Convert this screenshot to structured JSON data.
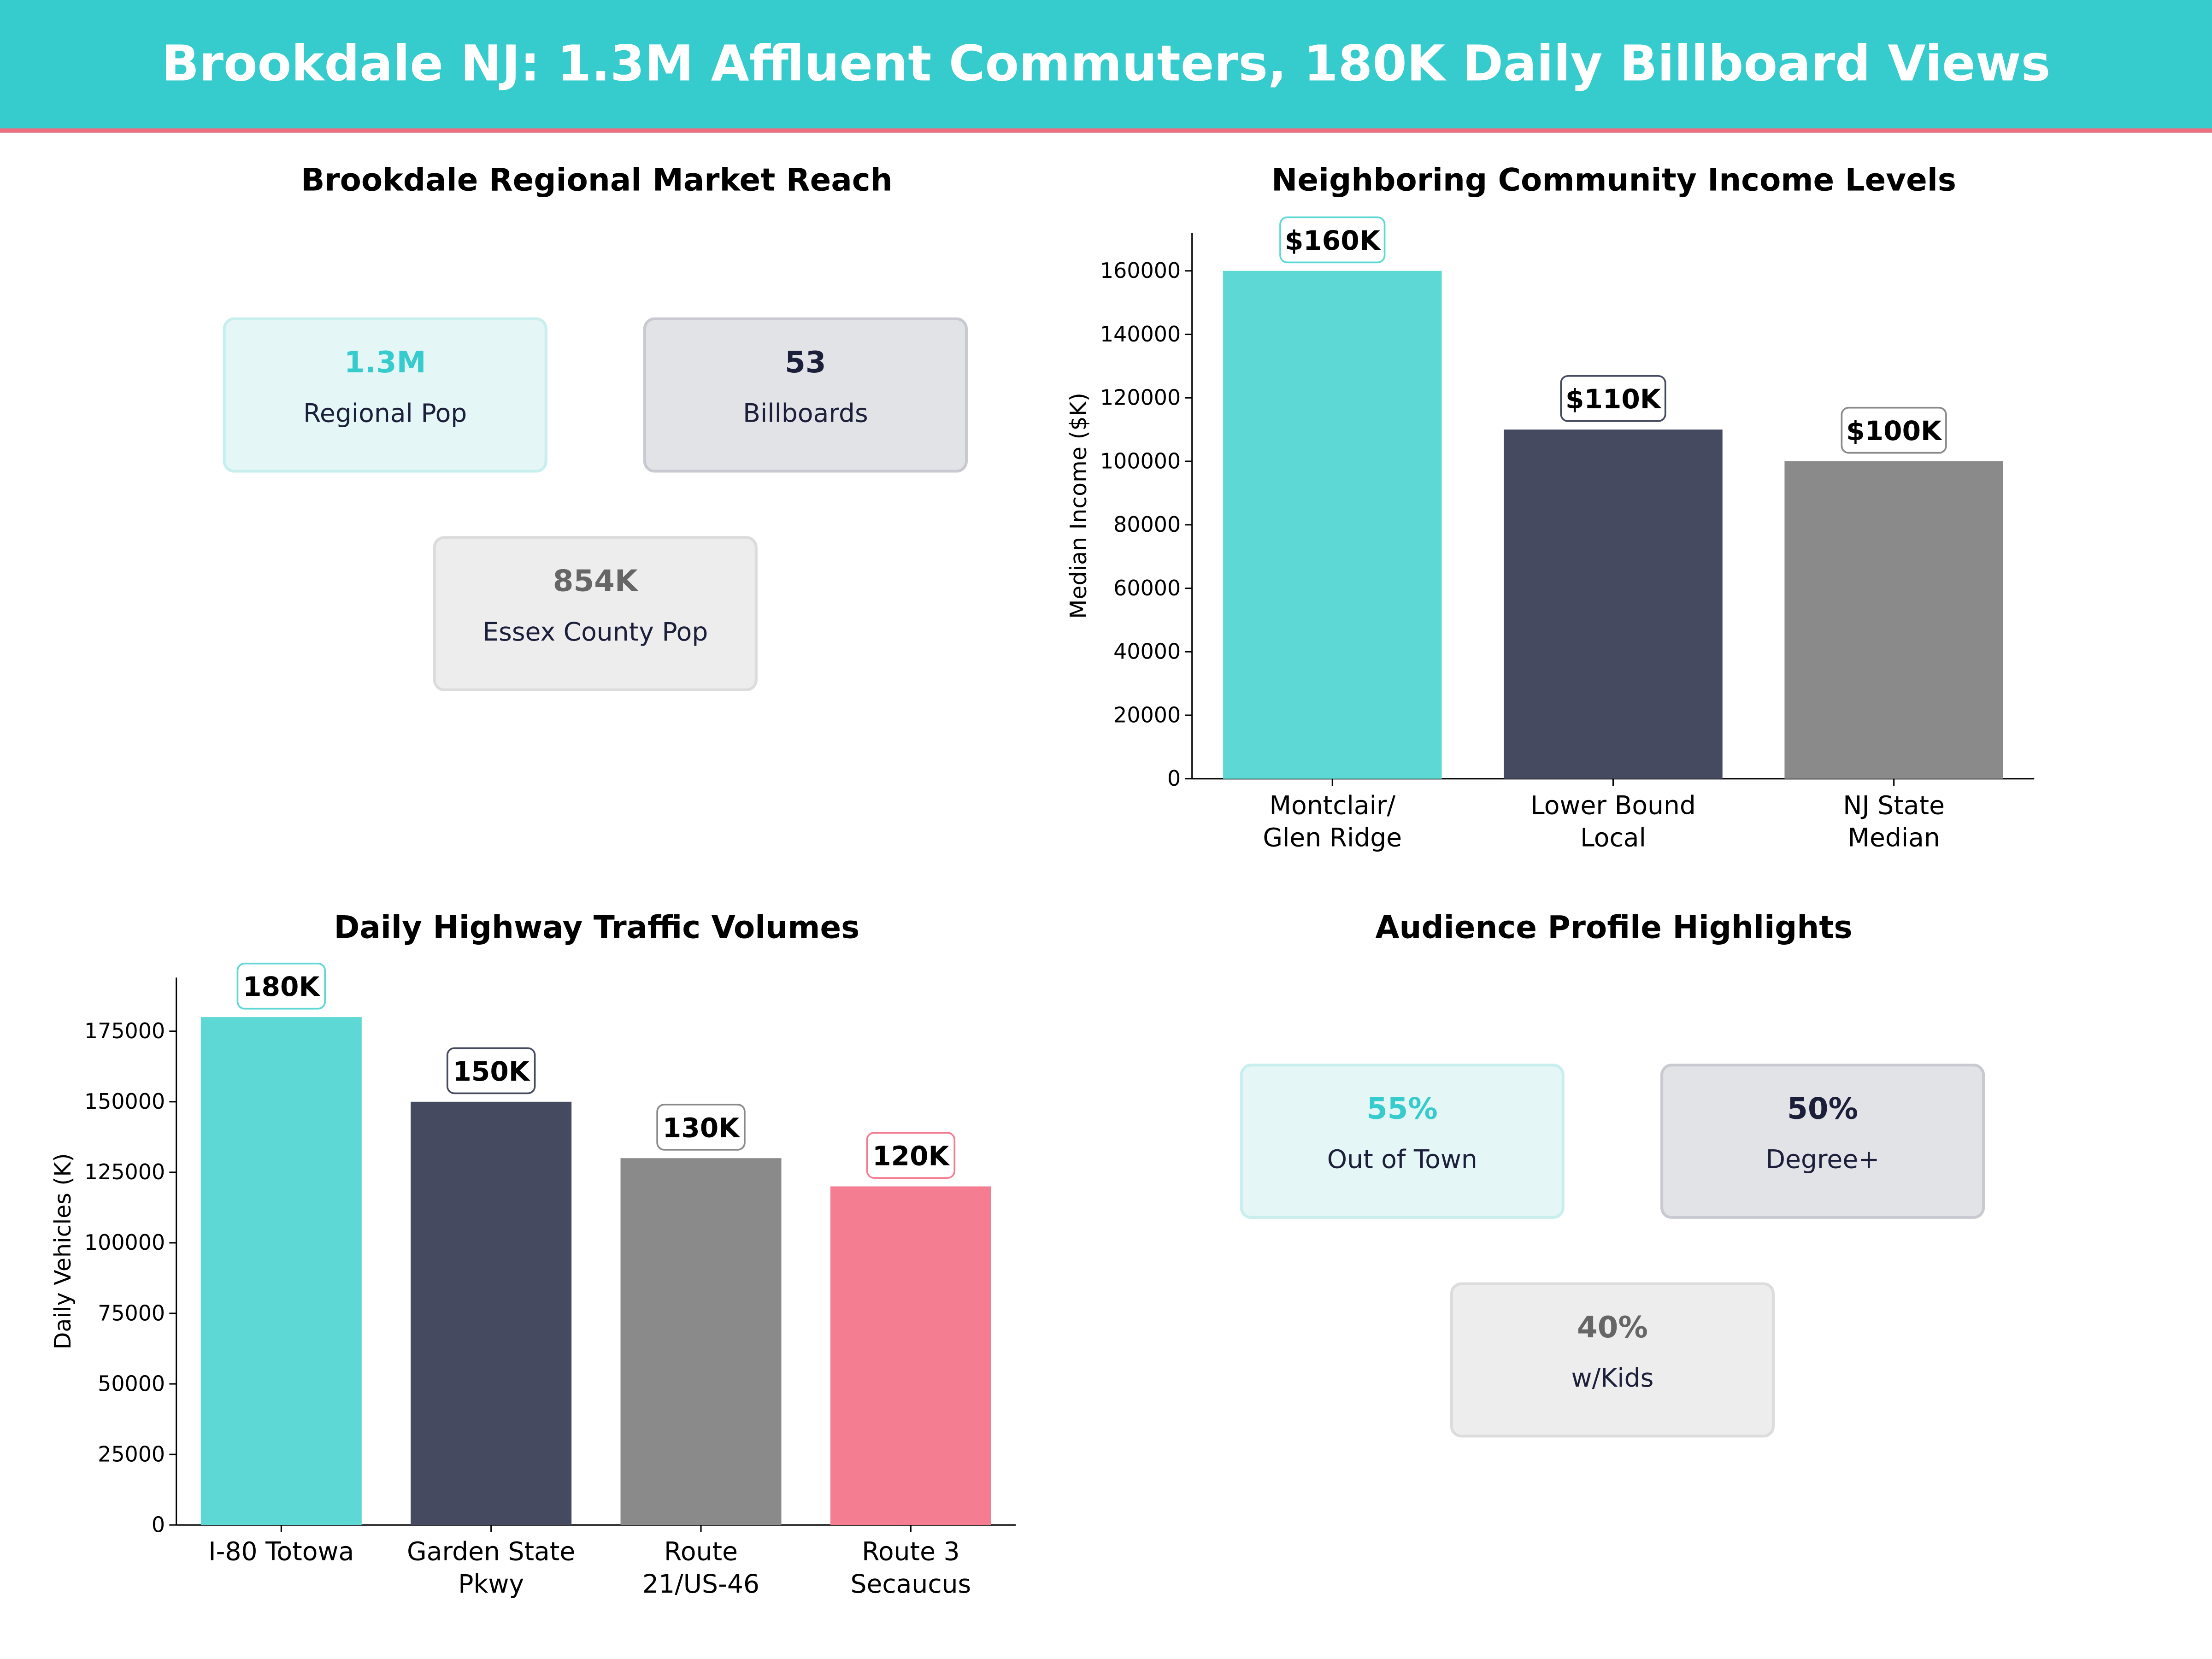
{
  "header": {
    "title": "Brookdale NJ: 1.3M Affluent Commuters, 180K Daily Billboard Views",
    "bg_color": "#36cbcc",
    "accent_line_color": "#ef6f81"
  },
  "market_reach": {
    "title": "Brookdale Regional Market Reach",
    "cards": [
      {
        "value": "1.3M",
        "label": "Regional Pop",
        "value_color": "#36cbcc",
        "bg": "#e4f6f6",
        "border": "#c9eeee"
      },
      {
        "value": "53",
        "label": "Billboards",
        "value_color": "#1c1f3a",
        "bg": "#e2e3e7",
        "border": "#c9cad1"
      },
      {
        "value": "854K",
        "label": "Essex County Pop",
        "value_color": "#666666",
        "bg": "#ededed",
        "border": "#dcdcdc"
      }
    ]
  },
  "audience": {
    "title": "Audience Profile Highlights",
    "cards": [
      {
        "value": "55%",
        "label": "Out of Town",
        "value_color": "#36cbcc",
        "bg": "#e4f6f6",
        "border": "#c9eeee"
      },
      {
        "value": "50%",
        "label": "Degree+",
        "value_color": "#1c1f3a",
        "bg": "#e2e3e7",
        "border": "#c9cad1"
      },
      {
        "value": "40%",
        "label": "w/Kids",
        "value_color": "#666666",
        "bg": "#ededed",
        "border": "#dcdcdc"
      }
    ]
  },
  "chart_data": [
    {
      "type": "bar",
      "title": "Neighboring Community Income Levels",
      "xlabel": "",
      "ylabel": "Median Income ($K)",
      "categories": [
        [
          "Montclair/",
          "Glen Ridge"
        ],
        [
          "Lower Bound",
          "Local"
        ],
        [
          "NJ State",
          "Median"
        ]
      ],
      "values": [
        160000,
        110000,
        100000
      ],
      "data_labels": [
        "$160K",
        "$110K",
        "$100K"
      ],
      "colors": [
        "#5dd8d4",
        "#464a60",
        "#8a8a8a"
      ],
      "label_borders": [
        "#5dd8d4",
        "#464a60",
        "#8a8a8a"
      ],
      "ylim": [
        0,
        172000
      ],
      "yticks": [
        0,
        20000,
        40000,
        60000,
        80000,
        100000,
        120000,
        140000,
        160000
      ],
      "grid": false
    },
    {
      "type": "bar",
      "title": "Daily Highway Traffic Volumes",
      "xlabel": "",
      "ylabel": "Daily Vehicles (K)",
      "categories": [
        [
          "I-80 Totowa"
        ],
        [
          "Garden State",
          "Pkwy"
        ],
        [
          "Route",
          "21/US-46"
        ],
        [
          "Route 3",
          "Secaucus"
        ]
      ],
      "values": [
        180000,
        150000,
        130000,
        120000
      ],
      "data_labels": [
        "180K",
        "150K",
        "130K",
        "120K"
      ],
      "colors": [
        "#5dd8d4",
        "#464a60",
        "#8a8a8a",
        "#f47d91"
      ],
      "label_borders": [
        "#5dd8d4",
        "#464a60",
        "#8a8a8a",
        "#f47d91"
      ],
      "ylim": [
        0,
        194000
      ],
      "yticks": [
        0,
        25000,
        50000,
        75000,
        100000,
        125000,
        150000,
        175000
      ],
      "grid": false
    }
  ]
}
